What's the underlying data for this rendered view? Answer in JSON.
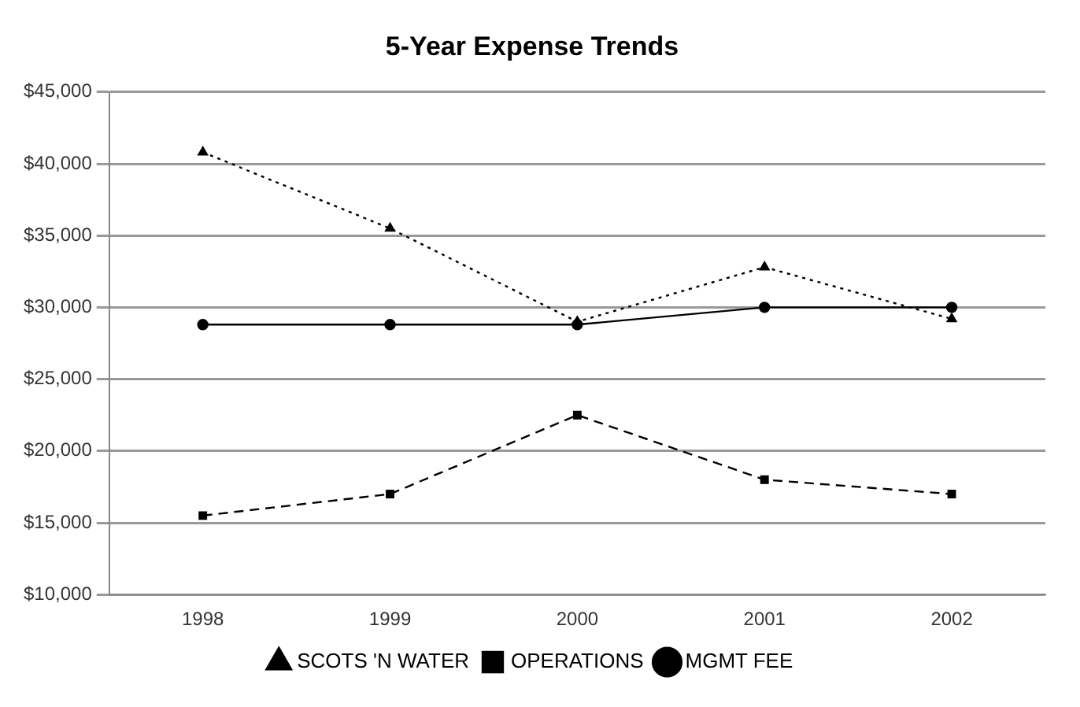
{
  "chart_data": {
    "type": "line",
    "title": "5-Year Expense Trends",
    "categories": [
      "1998",
      "1999",
      "2000",
      "2001",
      "2002"
    ],
    "series": [
      {
        "name": "MGMT FEE",
        "color": "#000000",
        "values": [
          28800,
          28800,
          28800,
          30000,
          30000
        ],
        "line_style": "solid",
        "marker": "circle"
      },
      {
        "name": "OPERATIONS",
        "color": "#000000",
        "values": [
          15500,
          17000,
          22500,
          18000,
          17000
        ],
        "line_style": "dashed",
        "marker": "square"
      },
      {
        "name": "SCOTS 'N WATER",
        "color": "#000000",
        "values": [
          40800,
          35500,
          29000,
          32800,
          29200
        ],
        "line_style": "dotted",
        "marker": "triangle"
      }
    ],
    "ylim": [
      10000,
      45000
    ],
    "yticks": [
      {
        "value": 10000,
        "label": "$10,000"
      },
      {
        "value": 15000,
        "label": "$15,000"
      },
      {
        "value": 20000,
        "label": "$20,000"
      },
      {
        "value": 25000,
        "label": "$25,000"
      },
      {
        "value": 30000,
        "label": "$30,000"
      },
      {
        "value": 35000,
        "label": "$35,000"
      },
      {
        "value": 40000,
        "label": "$40,000"
      },
      {
        "value": 45000,
        "label": "$45,000"
      }
    ],
    "grid": "y",
    "legend": "bottom"
  }
}
